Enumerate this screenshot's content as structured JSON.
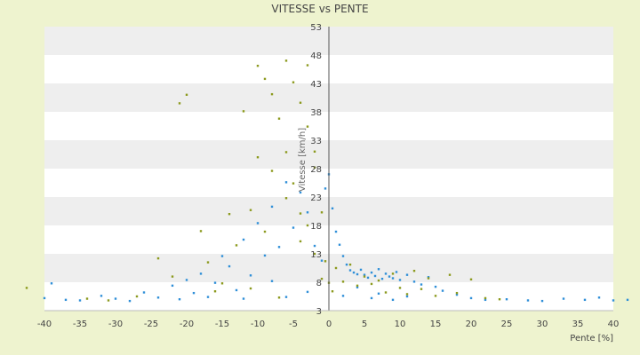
{
  "chart_data": {
    "type": "scatter",
    "title": "VITESSE vs PENTE",
    "xlabel": "Pente [%]",
    "ylabel": "Vitesse [km/h]",
    "xlim": [
      -40,
      40
    ],
    "ylim": [
      3,
      53
    ],
    "x_ticks": [
      "-40",
      "-35",
      "-30",
      "-25",
      "-20",
      "-15",
      "-10",
      "-5",
      "0",
      "5",
      "10",
      "15",
      "20",
      "25",
      "30",
      "35",
      "40"
    ],
    "y_ticks": [
      "3",
      "8",
      "13",
      "18",
      "23",
      "28",
      "33",
      "38",
      "43",
      "48",
      "53"
    ],
    "grid": "horizontal bands",
    "legend": "none",
    "colors": {
      "page_background": "#eef3cf",
      "plot_background": "#ffffff",
      "band_alt": "#eeeeee",
      "axis": "#555555",
      "series_a": "#2f8fd8",
      "series_b": "#8c9a1e"
    },
    "series": [
      {
        "color": "#2f8fd8",
        "values": [
          [
            -40,
            5.2
          ],
          [
            -39,
            7.8
          ],
          [
            -37,
            4.9
          ],
          [
            -35,
            4.8
          ],
          [
            -32,
            5.6
          ],
          [
            -30,
            5.1
          ],
          [
            -28,
            4.7
          ],
          [
            -26,
            6.2
          ],
          [
            -24,
            5.3
          ],
          [
            -22,
            7.4
          ],
          [
            -21,
            5.0
          ],
          [
            -20,
            8.4
          ],
          [
            -19,
            6.1
          ],
          [
            -18,
            9.5
          ],
          [
            -17,
            5.4
          ],
          [
            -16,
            7.9
          ],
          [
            -15,
            12.6
          ],
          [
            -14,
            10.8
          ],
          [
            -13,
            6.6
          ],
          [
            -12,
            15.5
          ],
          [
            -11,
            9.2
          ],
          [
            -10,
            18.4
          ],
          [
            -9,
            12.7
          ],
          [
            -8,
            21.3
          ],
          [
            -7,
            14.2
          ],
          [
            -6,
            25.6
          ],
          [
            -5,
            17.6
          ],
          [
            -4,
            23.8
          ],
          [
            -3,
            20.3
          ],
          [
            -2,
            14.4
          ],
          [
            -1,
            11.8
          ],
          [
            -0.5,
            24.5
          ],
          [
            0,
            27.0
          ],
          [
            0.5,
            21.0
          ],
          [
            1,
            16.9
          ],
          [
            1.5,
            14.6
          ],
          [
            2,
            12.6
          ],
          [
            2.5,
            11.1
          ],
          [
            3,
            10.1
          ],
          [
            3.5,
            9.7
          ],
          [
            4,
            9.4
          ],
          [
            4.5,
            10.2
          ],
          [
            5,
            9.3
          ],
          [
            5.5,
            8.8
          ],
          [
            6,
            9.7
          ],
          [
            6.5,
            9.1
          ],
          [
            7,
            10.3
          ],
          [
            7.5,
            8.6
          ],
          [
            8,
            9.5
          ],
          [
            8.5,
            9.0
          ],
          [
            9,
            8.7
          ],
          [
            9.5,
            9.8
          ],
          [
            10,
            8.4
          ],
          [
            11,
            9.3
          ],
          [
            12,
            8.1
          ],
          [
            13,
            7.6
          ],
          [
            14,
            8.9
          ],
          [
            15,
            7.2
          ],
          [
            16,
            6.5
          ],
          [
            18,
            5.8
          ],
          [
            20,
            5.2
          ],
          [
            22,
            4.9
          ],
          [
            25,
            5.0
          ],
          [
            28,
            4.8
          ],
          [
            30,
            4.7
          ],
          [
            33,
            5.1
          ],
          [
            36,
            4.9
          ],
          [
            38,
            5.3
          ],
          [
            40,
            4.8
          ],
          [
            42,
            4.9
          ],
          [
            -6,
            5.4
          ],
          [
            -12,
            5.1
          ],
          [
            2,
            5.6
          ],
          [
            6,
            5.2
          ],
          [
            9,
            4.9
          ],
          [
            -3,
            6.3
          ],
          [
            4,
            7.1
          ],
          [
            7,
            6.0
          ],
          [
            11,
            5.5
          ],
          [
            -8,
            8.2
          ]
        ]
      },
      {
        "color": "#8c9a1e",
        "values": [
          [
            -43,
            7.0
          ],
          [
            -34,
            5.1
          ],
          [
            -31,
            4.8
          ],
          [
            -27,
            5.5
          ],
          [
            -24,
            12.2
          ],
          [
            -22,
            9.0
          ],
          [
            -21,
            39.5
          ],
          [
            -20,
            41.0
          ],
          [
            -18,
            17.0
          ],
          [
            -17,
            11.5
          ],
          [
            -16,
            6.4
          ],
          [
            -14,
            20.0
          ],
          [
            -13,
            14.5
          ],
          [
            -12,
            38.1
          ],
          [
            -11,
            20.7
          ],
          [
            -10,
            46.1
          ],
          [
            -10,
            30.0
          ],
          [
            -9,
            43.8
          ],
          [
            -8,
            27.6
          ],
          [
            -8,
            41.1
          ],
          [
            -7,
            36.8
          ],
          [
            -6,
            30.9
          ],
          [
            -6,
            47.0
          ],
          [
            -5,
            43.2
          ],
          [
            -5,
            25.4
          ],
          [
            -4,
            39.6
          ],
          [
            -4,
            20.1
          ],
          [
            -3,
            35.4
          ],
          [
            -3,
            46.2
          ],
          [
            -2,
            28.2
          ],
          [
            -2,
            13.0
          ],
          [
            -1,
            20.3
          ],
          [
            -1,
            8.6
          ],
          [
            -0.5,
            11.7
          ],
          [
            0,
            7.9
          ],
          [
            0.5,
            6.4
          ],
          [
            1,
            10.5
          ],
          [
            2,
            8.1
          ],
          [
            3,
            11.1
          ],
          [
            4,
            7.4
          ],
          [
            5,
            9.0
          ],
          [
            6,
            7.7
          ],
          [
            7,
            8.3
          ],
          [
            8,
            6.2
          ],
          [
            9,
            9.5
          ],
          [
            10,
            7.0
          ],
          [
            11,
            5.9
          ],
          [
            12,
            10.0
          ],
          [
            13,
            6.8
          ],
          [
            14,
            8.7
          ],
          [
            15,
            5.6
          ],
          [
            17,
            9.3
          ],
          [
            18,
            6.1
          ],
          [
            20,
            8.5
          ],
          [
            22,
            5.2
          ],
          [
            24,
            5.0
          ],
          [
            -7,
            5.3
          ],
          [
            -11,
            6.9
          ],
          [
            -15,
            7.8
          ],
          [
            -9,
            16.9
          ],
          [
            -4,
            15.2
          ],
          [
            -2,
            31.0
          ],
          [
            -6,
            22.8
          ],
          [
            -3,
            18.0
          ]
        ]
      }
    ]
  }
}
